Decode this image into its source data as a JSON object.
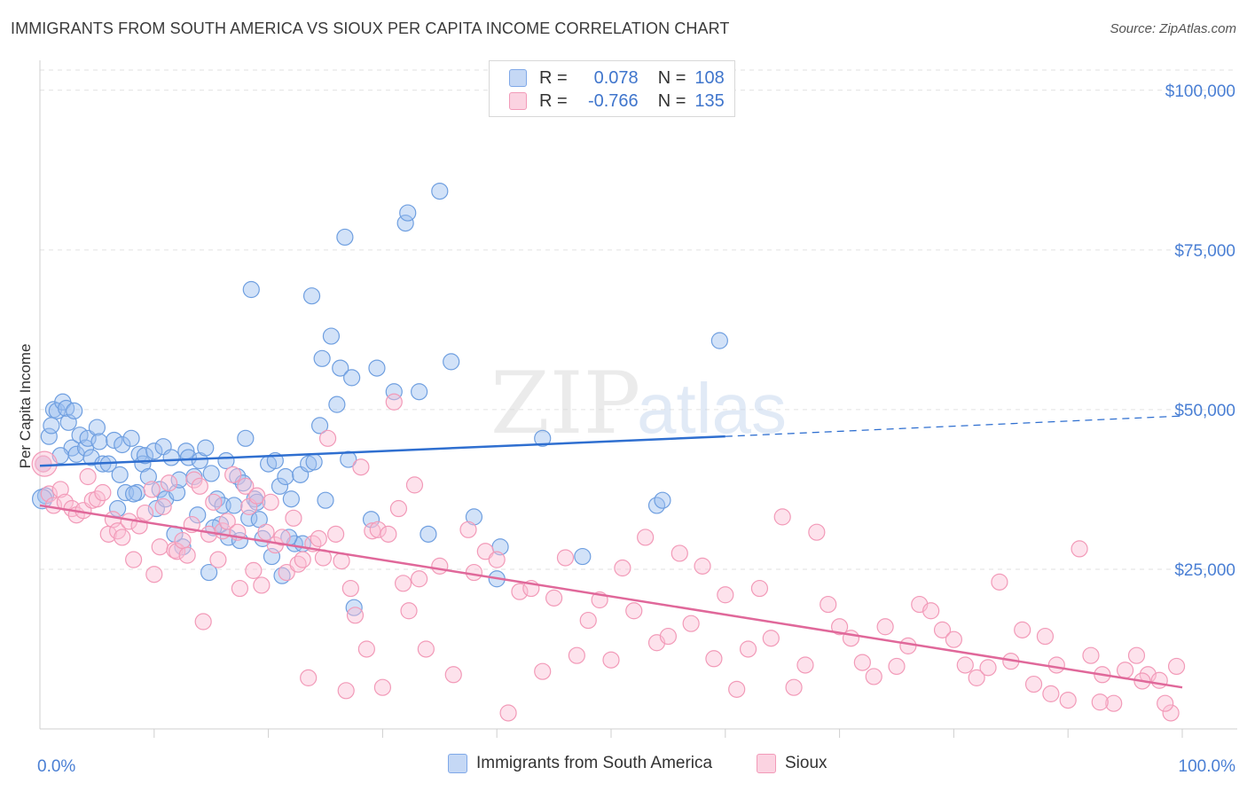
{
  "title": "IMMIGRANTS FROM SOUTH AMERICA VS SIOUX PER CAPITA INCOME CORRELATION CHART",
  "source": "Source: ZipAtlas.com",
  "watermark": {
    "zip": "ZIP",
    "atlas": "atlas"
  },
  "legend": {
    "r_label": "R =",
    "n_label": "N =",
    "rows": [
      {
        "r": "0.078",
        "n": "108",
        "color": "#7fa8e8",
        "fill": "#c5d8f5"
      },
      {
        "r": "-0.766",
        "n": "135",
        "color": "#f29ab8",
        "fill": "#fbd3e1"
      }
    ]
  },
  "bottom_legend": [
    {
      "label": "Immigrants from South America"
    },
    {
      "label": "Sioux"
    }
  ],
  "chart_data": {
    "type": "scatter",
    "ylabel": "Per Capita Income",
    "xlabel": "",
    "xlim": [
      0,
      100
    ],
    "ylim": [
      0,
      104000
    ],
    "x_tick_labels": [
      "0.0%",
      "100.0%"
    ],
    "y_ticks": [
      25000,
      50000,
      75000,
      100000
    ],
    "y_tick_labels": [
      "$25,000",
      "$50,000",
      "$75,000",
      "$100,000"
    ],
    "grid": true,
    "series": [
      {
        "name": "Immigrants from South America",
        "color": "#6f9fe0",
        "fill": "rgba(155,190,240,0.45)",
        "trend": {
          "x0": 0,
          "y0": 41200,
          "x1": 60,
          "y1": 45800,
          "dash_to_x": 100,
          "dash_to_y": 49000,
          "color": "#2f6fd0"
        },
        "points": [
          [
            0.5,
            36500
          ],
          [
            0.8,
            45800
          ],
          [
            1.0,
            47500
          ],
          [
            1.2,
            50000
          ],
          [
            1.5,
            49800
          ],
          [
            2.0,
            51200
          ],
          [
            2.3,
            50200
          ],
          [
            2.5,
            48000
          ],
          [
            2.8,
            44000
          ],
          [
            3.0,
            49800
          ],
          [
            3.2,
            43000
          ],
          [
            3.5,
            46000
          ],
          [
            4.0,
            44000
          ],
          [
            4.2,
            45500
          ],
          [
            4.5,
            42500
          ],
          [
            5.0,
            47200
          ],
          [
            5.2,
            45000
          ],
          [
            5.5,
            41500
          ],
          [
            6.0,
            41500
          ],
          [
            6.5,
            45200
          ],
          [
            7.0,
            39800
          ],
          [
            7.2,
            44500
          ],
          [
            7.5,
            37000
          ],
          [
            8.0,
            45500
          ],
          [
            8.5,
            37000
          ],
          [
            8.7,
            43000
          ],
          [
            9.0,
            41500
          ],
          [
            9.2,
            42800
          ],
          [
            9.5,
            39500
          ],
          [
            10.0,
            43500
          ],
          [
            10.2,
            34500
          ],
          [
            10.5,
            37500
          ],
          [
            10.8,
            44200
          ],
          [
            11.0,
            36000
          ],
          [
            11.5,
            42500
          ],
          [
            12.0,
            37000
          ],
          [
            12.2,
            39000
          ],
          [
            12.5,
            28500
          ],
          [
            12.8,
            43500
          ],
          [
            13.0,
            42500
          ],
          [
            13.5,
            39500
          ],
          [
            13.8,
            33500
          ],
          [
            14.0,
            42000
          ],
          [
            14.5,
            44000
          ],
          [
            14.8,
            24500
          ],
          [
            15.0,
            40000
          ],
          [
            15.5,
            36000
          ],
          [
            15.8,
            32000
          ],
          [
            16.0,
            35000
          ],
          [
            16.3,
            42000
          ],
          [
            16.5,
            30000
          ],
          [
            17.0,
            35000
          ],
          [
            17.3,
            39500
          ],
          [
            17.5,
            29500
          ],
          [
            17.8,
            38500
          ],
          [
            18.0,
            45500
          ],
          [
            18.3,
            33000
          ],
          [
            18.5,
            68800
          ],
          [
            18.8,
            36000
          ],
          [
            19.0,
            35500
          ],
          [
            19.2,
            32800
          ],
          [
            19.5,
            29800
          ],
          [
            20.0,
            41500
          ],
          [
            20.3,
            27000
          ],
          [
            20.6,
            42000
          ],
          [
            21.0,
            38000
          ],
          [
            21.2,
            24000
          ],
          [
            21.5,
            39500
          ],
          [
            22.0,
            36000
          ],
          [
            22.3,
            29000
          ],
          [
            22.8,
            39800
          ],
          [
            23.0,
            29000
          ],
          [
            23.5,
            41500
          ],
          [
            23.8,
            67800
          ],
          [
            24.0,
            41800
          ],
          [
            24.5,
            47500
          ],
          [
            24.7,
            58000
          ],
          [
            25.0,
            35800
          ],
          [
            25.5,
            61500
          ],
          [
            26.0,
            50800
          ],
          [
            26.3,
            56500
          ],
          [
            26.7,
            77000
          ],
          [
            27.0,
            42200
          ],
          [
            27.3,
            55000
          ],
          [
            27.5,
            19000
          ],
          [
            29.0,
            32800
          ],
          [
            29.5,
            56500
          ],
          [
            31.0,
            52800
          ],
          [
            32.0,
            79200
          ],
          [
            32.2,
            80800
          ],
          [
            33.2,
            52800
          ],
          [
            34.0,
            30500
          ],
          [
            35.0,
            84200
          ],
          [
            36.0,
            57500
          ],
          [
            38.0,
            33200
          ],
          [
            40.0,
            23500
          ],
          [
            40.3,
            28500
          ],
          [
            44.0,
            45500
          ],
          [
            47.5,
            27000
          ],
          [
            54.0,
            35000
          ],
          [
            54.5,
            35800
          ],
          [
            59.5,
            60800
          ],
          [
            0.3,
            41500
          ],
          [
            1.8,
            42800
          ],
          [
            6.8,
            34500
          ],
          [
            8.2,
            36800
          ],
          [
            11.8,
            30500
          ],
          [
            15.2,
            31500
          ],
          [
            21.8,
            30000
          ]
        ]
      },
      {
        "name": "Sioux",
        "color": "#f29ab8",
        "fill": "rgba(250,190,212,0.45)",
        "trend": {
          "x0": 0,
          "y0": 35000,
          "x1": 100,
          "y1": 6500,
          "color": "#e0689a"
        },
        "points": [
          [
            0.3,
            41500
          ],
          [
            0.8,
            36800
          ],
          [
            1.2,
            35000
          ],
          [
            1.8,
            37500
          ],
          [
            2.2,
            35500
          ],
          [
            2.8,
            34500
          ],
          [
            3.2,
            33500
          ],
          [
            3.8,
            34200
          ],
          [
            4.2,
            39500
          ],
          [
            4.6,
            35800
          ],
          [
            5.0,
            36000
          ],
          [
            5.5,
            37000
          ],
          [
            6.0,
            30500
          ],
          [
            6.4,
            32800
          ],
          [
            6.8,
            31000
          ],
          [
            7.2,
            30000
          ],
          [
            7.8,
            32500
          ],
          [
            8.2,
            26500
          ],
          [
            8.7,
            31800
          ],
          [
            9.2,
            33800
          ],
          [
            9.8,
            37500
          ],
          [
            10.0,
            24200
          ],
          [
            10.5,
            28500
          ],
          [
            10.8,
            34800
          ],
          [
            11.3,
            38500
          ],
          [
            11.8,
            28000
          ],
          [
            12.0,
            27800
          ],
          [
            12.5,
            29500
          ],
          [
            12.9,
            27200
          ],
          [
            13.3,
            32000
          ],
          [
            13.5,
            39000
          ],
          [
            14.0,
            38000
          ],
          [
            14.3,
            16800
          ],
          [
            14.8,
            30500
          ],
          [
            15.2,
            35500
          ],
          [
            15.6,
            26500
          ],
          [
            16.0,
            31000
          ],
          [
            16.4,
            32500
          ],
          [
            16.9,
            39800
          ],
          [
            17.3,
            30800
          ],
          [
            17.5,
            22000
          ],
          [
            18.0,
            38000
          ],
          [
            18.3,
            34800
          ],
          [
            18.7,
            24800
          ],
          [
            19.0,
            36500
          ],
          [
            19.4,
            22500
          ],
          [
            19.8,
            30800
          ],
          [
            20.2,
            35500
          ],
          [
            20.6,
            28800
          ],
          [
            21.2,
            30000
          ],
          [
            21.6,
            24500
          ],
          [
            22.2,
            33000
          ],
          [
            22.6,
            25800
          ],
          [
            23.0,
            26500
          ],
          [
            23.5,
            8000
          ],
          [
            23.9,
            29000
          ],
          [
            24.4,
            29800
          ],
          [
            24.8,
            26800
          ],
          [
            25.2,
            45500
          ],
          [
            25.9,
            30500
          ],
          [
            26.4,
            26300
          ],
          [
            26.8,
            6000
          ],
          [
            27.2,
            22000
          ],
          [
            27.6,
            17800
          ],
          [
            28.1,
            41000
          ],
          [
            28.6,
            12500
          ],
          [
            29.1,
            31000
          ],
          [
            29.6,
            31200
          ],
          [
            30.0,
            6500
          ],
          [
            30.5,
            30500
          ],
          [
            31.0,
            51200
          ],
          [
            31.4,
            34500
          ],
          [
            31.8,
            22800
          ],
          [
            32.3,
            18500
          ],
          [
            32.8,
            38200
          ],
          [
            33.2,
            23500
          ],
          [
            33.8,
            12500
          ],
          [
            35.0,
            25500
          ],
          [
            36.2,
            8500
          ],
          [
            37.5,
            31200
          ],
          [
            38.0,
            24500
          ],
          [
            39.0,
            27800
          ],
          [
            40.0,
            26500
          ],
          [
            41.0,
            2500
          ],
          [
            42.0,
            21500
          ],
          [
            43.0,
            22000
          ],
          [
            44.0,
            9000
          ],
          [
            45.0,
            20500
          ],
          [
            46.0,
            26800
          ],
          [
            47.0,
            11500
          ],
          [
            48.0,
            17000
          ],
          [
            49.0,
            20200
          ],
          [
            50.0,
            10800
          ],
          [
            51.0,
            25200
          ],
          [
            52.0,
            18500
          ],
          [
            53.0,
            30000
          ],
          [
            54.0,
            13500
          ],
          [
            55.0,
            14500
          ],
          [
            56.0,
            27500
          ],
          [
            57.0,
            16500
          ],
          [
            58.0,
            25500
          ],
          [
            59.0,
            11000
          ],
          [
            60.0,
            21000
          ],
          [
            61.0,
            6200
          ],
          [
            62.0,
            12500
          ],
          [
            63.0,
            22000
          ],
          [
            64.0,
            14200
          ],
          [
            65.0,
            33200
          ],
          [
            66.0,
            6500
          ],
          [
            67.0,
            10000
          ],
          [
            68.0,
            30800
          ],
          [
            69.0,
            19500
          ],
          [
            70.0,
            16000
          ],
          [
            71.0,
            14200
          ],
          [
            72.0,
            10400
          ],
          [
            73.0,
            8200
          ],
          [
            74.0,
            16000
          ],
          [
            75.0,
            9800
          ],
          [
            76.0,
            13000
          ],
          [
            77.0,
            19500
          ],
          [
            78.0,
            18500
          ],
          [
            79.0,
            15500
          ],
          [
            80.0,
            14000
          ],
          [
            81.0,
            10000
          ],
          [
            82.0,
            8000
          ],
          [
            83.0,
            9600
          ],
          [
            84.0,
            23000
          ],
          [
            85.0,
            10600
          ],
          [
            86.0,
            15500
          ],
          [
            87.0,
            7000
          ],
          [
            88.0,
            14500
          ],
          [
            89.0,
            10000
          ],
          [
            90.0,
            4500
          ],
          [
            91.0,
            28200
          ],
          [
            92.0,
            11500
          ],
          [
            93.0,
            8500
          ],
          [
            94.0,
            4000
          ],
          [
            95.0,
            9200
          ],
          [
            96.0,
            11500
          ],
          [
            97.0,
            8500
          ],
          [
            98.0,
            7600
          ],
          [
            99.0,
            2500
          ],
          [
            99.5,
            9800
          ],
          [
            88.5,
            5500
          ],
          [
            92.8,
            4200
          ],
          [
            96.5,
            7500
          ],
          [
            98.5,
            4000
          ]
        ]
      }
    ]
  }
}
